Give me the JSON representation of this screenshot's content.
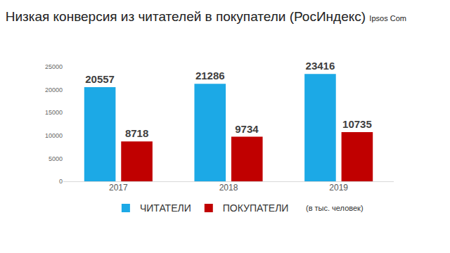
{
  "chart_data": {
    "type": "bar",
    "title": "Низкая конверсия из читателей в покупатели (РосИндекс)",
    "source": "Ipsos Com",
    "note": "(в тыс. человек)",
    "categories": [
      "2017",
      "2018",
      "2019"
    ],
    "series": [
      {
        "name": "ЧИТАТЕЛИ",
        "color": "#1ca9e6",
        "values": [
          20557,
          21286,
          23416
        ]
      },
      {
        "name": "ПОКУПАТЕЛИ",
        "color": "#c00000",
        "values": [
          8718,
          9734,
          10735
        ]
      }
    ],
    "ylim": [
      0,
      25000
    ],
    "yticks": [
      0,
      5000,
      10000,
      15000,
      20000,
      25000
    ],
    "grid": false,
    "legend": "bottom",
    "data_labels": true
  }
}
